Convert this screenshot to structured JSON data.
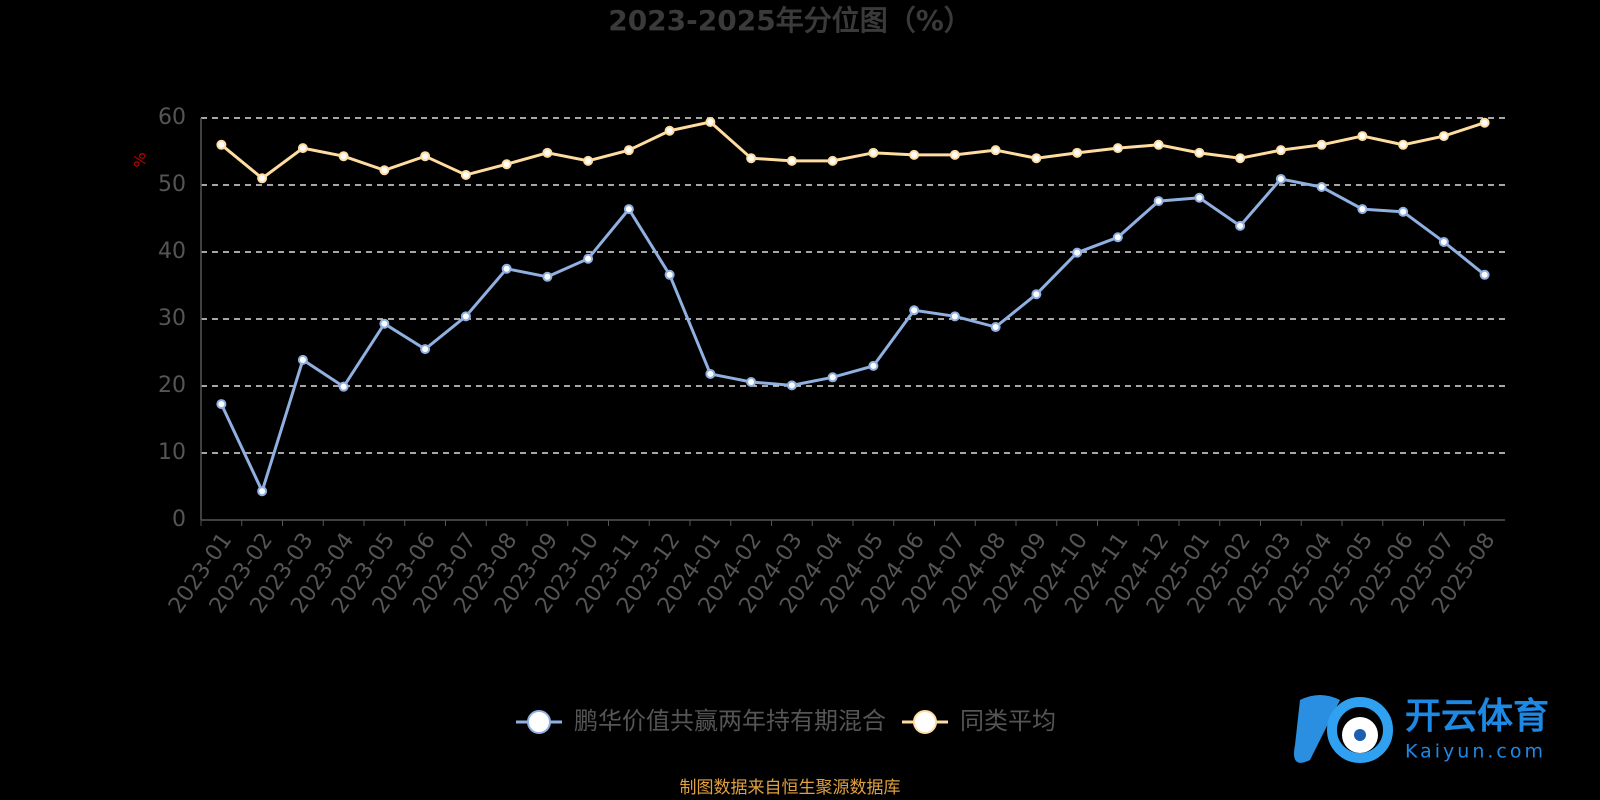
{
  "chart_data": {
    "type": "line",
    "title": "2023-2025年分位图（%）",
    "y_label": "%",
    "categories": [
      "2023-01",
      "2023-02",
      "2023-03",
      "2023-04",
      "2023-05",
      "2023-06",
      "2023-07",
      "2023-08",
      "2023-09",
      "2023-10",
      "2023-11",
      "2023-12",
      "2024-01",
      "2024-02",
      "2024-03",
      "2024-04",
      "2024-05",
      "2024-06",
      "2024-07",
      "2024-08",
      "2024-09",
      "2024-10",
      "2024-11",
      "2024-12",
      "2025-01",
      "2025-02",
      "2025-03",
      "2025-04",
      "2025-05",
      "2025-06",
      "2025-07",
      "2025-08"
    ],
    "series": [
      {
        "name": "鹏华价值共赢两年持有期混合",
        "color": "#8fb0e0",
        "values": [
          17.3,
          4.3,
          23.9,
          19.9,
          29.3,
          25.5,
          30.4,
          37.5,
          36.3,
          39.0,
          46.4,
          36.6,
          21.8,
          20.6,
          20.1,
          21.3,
          23.0,
          31.3,
          30.4,
          28.8,
          33.7,
          39.9,
          42.2,
          47.6,
          48.1,
          43.9,
          50.9,
          49.7,
          46.4,
          46.0,
          41.5,
          36.6
        ]
      },
      {
        "name": "同类平均",
        "color": "#ffdca0",
        "values": [
          56.0,
          51.0,
          55.5,
          54.3,
          52.2,
          54.3,
          51.5,
          53.1,
          54.8,
          53.6,
          55.2,
          58.1,
          59.4,
          54.0,
          53.6,
          53.6,
          54.8,
          54.5,
          54.5,
          55.2,
          54.0,
          54.8,
          55.5,
          56.0,
          54.8,
          54.0,
          55.2,
          56.0,
          57.3,
          56.0,
          57.3,
          59.3
        ]
      }
    ],
    "ylim": [
      0,
      60
    ],
    "yticks": [
      0,
      10,
      20,
      30,
      40,
      50,
      60
    ],
    "grid": true,
    "source": "制图数据来自恒生聚源数据库",
    "watermark": {
      "name": "开云体育",
      "site": "Kaiyun.com"
    }
  }
}
